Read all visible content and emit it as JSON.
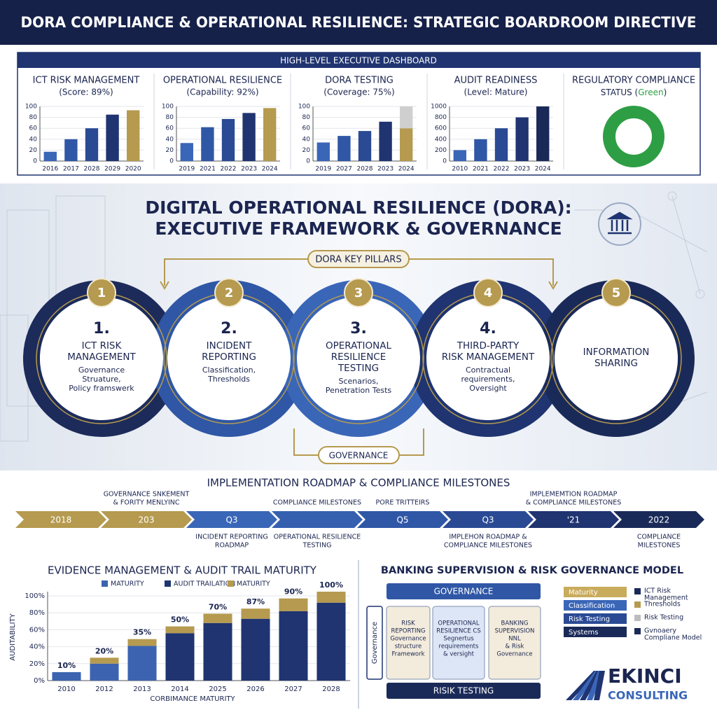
{
  "header": {
    "title": "DORA COMPLIANCE & OPERATIONAL RESILIENCE: STRATEGIC BOARDROOM DIRECTIVE"
  },
  "dashboard": {
    "title": "HIGH-LEVEL EXECUTIVE DASHBOARD",
    "status": {
      "title": "REGULATORY COMPLIANCE",
      "line": [
        "STATUS (",
        "Green",
        ")"
      ],
      "color": "#2e9e44"
    }
  },
  "chart_data": [
    {
      "type": "bar",
      "title": "ICT RISK MANAGEMENT",
      "subtitle": "(Score: 89%)",
      "categories": [
        "2016",
        "2017",
        "2028",
        "2029",
        "2020"
      ],
      "series": [
        {
          "colors": [
            "#3a66b8",
            "#2f57a6",
            "#2a4a94",
            "#1f3470",
            "#b59a4f"
          ],
          "values": [
            17,
            40,
            60,
            85,
            93
          ]
        }
      ],
      "ylim": [
        0,
        100
      ],
      "yticks": [
        0,
        20,
        40,
        60,
        80,
        100
      ]
    },
    {
      "type": "bar",
      "title": "OPERATIONAL RESILIENCE",
      "subtitle": "(Capability: 92%)",
      "categories": [
        "2019",
        "2021",
        "2022",
        "2023",
        "2024"
      ],
      "series": [
        {
          "colors": [
            "#3a66b8",
            "#2f57a6",
            "#2a4a94",
            "#1f3470",
            "#b59a4f"
          ],
          "values": [
            33,
            62,
            77,
            88,
            97
          ]
        }
      ],
      "ylim": [
        0,
        100
      ],
      "yticks": [
        0,
        20,
        40,
        60,
        80,
        100
      ]
    },
    {
      "type": "bar",
      "title": "DORA TESTING",
      "subtitle": "(Coverage: 75%)",
      "categories": [
        "2019",
        "2027",
        "2028",
        "2023",
        "2024"
      ],
      "series": [
        {
          "colors": [
            "#3a66b8",
            "#2f57a6",
            "#2a4a94",
            "#1f3470",
            "#b59a4f"
          ],
          "values": [
            34,
            46,
            55,
            72,
            60
          ]
        },
        {
          "colors": [
            null,
            null,
            null,
            null,
            "#cfcfcf"
          ],
          "values": [
            null,
            null,
            null,
            null,
            40
          ]
        }
      ],
      "ylim": [
        0,
        100
      ],
      "yticks": [
        0,
        20,
        40,
        60,
        80,
        100
      ]
    },
    {
      "type": "bar",
      "title": "AUDIT READINESS",
      "subtitle": "(Level: Mature)",
      "categories": [
        "2010",
        "2021",
        "2022",
        "2023",
        "2024"
      ],
      "series": [
        {
          "colors": [
            "#3a66b8",
            "#2f57a6",
            "#2a4a94",
            "#1f3470",
            "#1a2a58"
          ],
          "values": [
            200,
            400,
            600,
            800,
            1000
          ]
        }
      ],
      "ylim": [
        0,
        1000
      ],
      "yticks": [
        0,
        200,
        400,
        600,
        800,
        1000
      ]
    },
    {
      "type": "bar",
      "title": "EVIDENCE MANAGEMENT & AUDIT TRAIL MATURITY",
      "y_label": "AUDITABILITY",
      "x_label": "CORBIMANCE MATURITY",
      "categories": [
        "2010",
        "2012",
        "2013",
        "2014",
        "2025",
        "2026",
        "2027",
        "2028"
      ],
      "series": [
        {
          "name": "MATURITY",
          "color": "#3b63b0",
          "values": [
            10,
            20,
            41,
            null,
            null,
            null,
            null,
            null
          ]
        },
        {
          "name": "AUDIT TRAILATION",
          "color": "#1f3470",
          "values": [
            null,
            null,
            null,
            56,
            68,
            73,
            82,
            92
          ]
        },
        {
          "name": "MATURITY",
          "color": "#b59a4f",
          "values": [
            null,
            7,
            8,
            8,
            11,
            12,
            15,
            13
          ]
        }
      ],
      "bar_labels": [
        "10%",
        "20%",
        "35%",
        "50%",
        "70%",
        "87%",
        "90%",
        "100%"
      ],
      "ylim": [
        0,
        105
      ],
      "yticks": [
        {
          "value": 0,
          "label": "0%"
        },
        {
          "value": 20,
          "label": "20%"
        },
        {
          "value": 40,
          "label": "40%"
        },
        {
          "value": 60,
          "label": "60%"
        },
        {
          "value": 80,
          "label": "80%"
        },
        {
          "value": 100,
          "label": "100%"
        }
      ]
    }
  ],
  "framework": {
    "title": [
      "DIGITAL OPERATIONAL RESILIENCE (DORA):",
      "EXECUTIVE FRAMEWORK & GOVERNANCE"
    ],
    "pillars_label": "DORA KEY PILLARS",
    "governance_label": "GOVERNANCE",
    "pillars": [
      {
        "badge": "1",
        "number": "1.",
        "title": [
          "ICT RISK",
          "MANAGEMENT"
        ],
        "description": [
          "Governance",
          "Struature,",
          "Policy framswerk"
        ],
        "color": "#1c2b5a"
      },
      {
        "badge": "2",
        "number": "2.",
        "title": [
          "INCIDENT",
          "REPORTING"
        ],
        "description": [
          "Classification,",
          "Thresholds"
        ],
        "color": "#2f57a6"
      },
      {
        "badge": "3",
        "number": "3.",
        "title": [
          "OPERATIONAL",
          "RESILIENCE",
          "TESTING"
        ],
        "description": [
          "Scenarios,",
          "Penetration Tests"
        ],
        "color": "#3a66b8"
      },
      {
        "badge": "4",
        "number": "4.",
        "title": [
          "THIRD-PARTY",
          "RISK MANAGEMENT"
        ],
        "description": [
          "Contractual",
          "requirements,",
          "Oversight"
        ],
        "color": "#1f3470"
      },
      {
        "badge": "5",
        "title": [
          "INFORMATION",
          "SHARING"
        ],
        "description": [],
        "color": "#1a2a58"
      }
    ]
  },
  "roadmap": {
    "title": "IMPLEMENTATION ROADMAP & COMPLIANCE MILESTONES",
    "steps": [
      {
        "label": "2018",
        "color": "#b59a4f"
      },
      {
        "label": "203",
        "color": "#b59a4f",
        "above": [
          "GOVERNANCE SNKEMENT",
          "& FORITY MENLYINC"
        ]
      },
      {
        "label": "Q3",
        "color": "#3a66b8",
        "below": [
          "INCIDENT REPORTING",
          "ROADMAP"
        ]
      },
      {
        "label": null,
        "color": "#3560b0",
        "above": [
          "COMPLIANCE MILESTONES"
        ],
        "below": [
          "OPERATIONAL RESILIENCE",
          "TESTING"
        ]
      },
      {
        "label": "Q5",
        "color": "#2f57a6",
        "above": [
          "PORE TRITTEIRS"
        ]
      },
      {
        "label": "Q3",
        "color": "#2a4a94",
        "below": [
          "IMPLEHON ROADMAP &",
          "COMPLIANCE MILESTONES"
        ]
      },
      {
        "label": "'21",
        "color": "#1f3470",
        "above": [
          "IMPLEMEMTION ROADMAP",
          "& COMPLIANCE MILESTONES"
        ]
      },
      {
        "label": "2022",
        "color": "#1a2a58",
        "below": [
          "COMPLIANCE",
          "MILESTONES"
        ]
      }
    ]
  },
  "model": {
    "title": "BANKING SUPERVISION & RISK GOVERNANCE MODEL",
    "top": "GOVERNANCE",
    "side": "Governance",
    "bottom": "RISIK TESTING",
    "boxes": [
      {
        "lines": [
          "RISK",
          "REPORTING",
          "Governance",
          "structure",
          "Framework"
        ],
        "fill": "#f3ecdc"
      },
      {
        "lines": [
          "OPERATIONAL",
          "RESILIENCE CS",
          "Segnertus",
          "requirements",
          "& versight"
        ],
        "fill": "#dce6f6"
      },
      {
        "lines": [
          "BANKING",
          "SUPERVISION",
          "NNL",
          "& Risk",
          "Governance"
        ],
        "fill": "#f3ecdc"
      }
    ],
    "legend_left": [
      {
        "label": "Maturity",
        "color": "#c9ab5c"
      },
      {
        "label": "Classification",
        "color": "#3a66b8"
      },
      {
        "label": "Risk Testing",
        "color": "#2a4a94"
      },
      {
        "label": "Systems",
        "color": "#1a2a58"
      }
    ],
    "legend_right": [
      {
        "label": [
          "ICT Risk",
          "Management"
        ],
        "color": "#1a2a58"
      },
      {
        "label": [
          "Thresholds"
        ],
        "color": "#b59a4f"
      },
      {
        "label": [
          "Risk Testing"
        ],
        "color": "#bdbdbd"
      },
      {
        "label": [
          "Gvnoaery",
          "Compliane Model"
        ],
        "color": "#1a2a58"
      }
    ]
  },
  "logo": {
    "name": "EKINCI",
    "tagline": "CONSULTING"
  }
}
